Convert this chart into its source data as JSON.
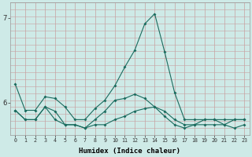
{
  "title": "",
  "xlabel": "Humidex (Indice chaleur)",
  "bg_color": "#ceeae7",
  "line_color": "#1a6b5e",
  "grid_color_v": "#c8a8a8",
  "grid_color_h": "#c8a8a8",
  "xlim": [
    -0.5,
    23.5
  ],
  "ylim": [
    5.62,
    7.18
  ],
  "yticks": [
    6,
    7
  ],
  "xticks": [
    0,
    1,
    2,
    3,
    4,
    5,
    6,
    7,
    8,
    9,
    10,
    11,
    12,
    13,
    14,
    15,
    16,
    17,
    18,
    19,
    20,
    21,
    22,
    23
  ],
  "series1": [
    6.22,
    5.91,
    5.91,
    6.07,
    6.05,
    5.95,
    5.8,
    5.8,
    5.93,
    6.03,
    6.2,
    6.42,
    6.62,
    6.93,
    7.05,
    6.6,
    6.12,
    5.8,
    5.8,
    5.8,
    5.8,
    5.8,
    5.8,
    5.8
  ],
  "series2": [
    5.91,
    5.8,
    5.8,
    5.95,
    5.8,
    5.74,
    5.74,
    5.7,
    5.74,
    5.74,
    5.8,
    5.84,
    5.9,
    5.93,
    5.95,
    5.84,
    5.74,
    5.7,
    5.74,
    5.74,
    5.74,
    5.74,
    5.7,
    5.74
  ],
  "series3": [
    5.91,
    5.8,
    5.8,
    5.95,
    5.9,
    5.74,
    5.74,
    5.7,
    5.8,
    5.9,
    6.03,
    6.05,
    6.1,
    6.05,
    5.95,
    5.9,
    5.8,
    5.74,
    5.74,
    5.8,
    5.8,
    5.74,
    5.8,
    5.8
  ]
}
